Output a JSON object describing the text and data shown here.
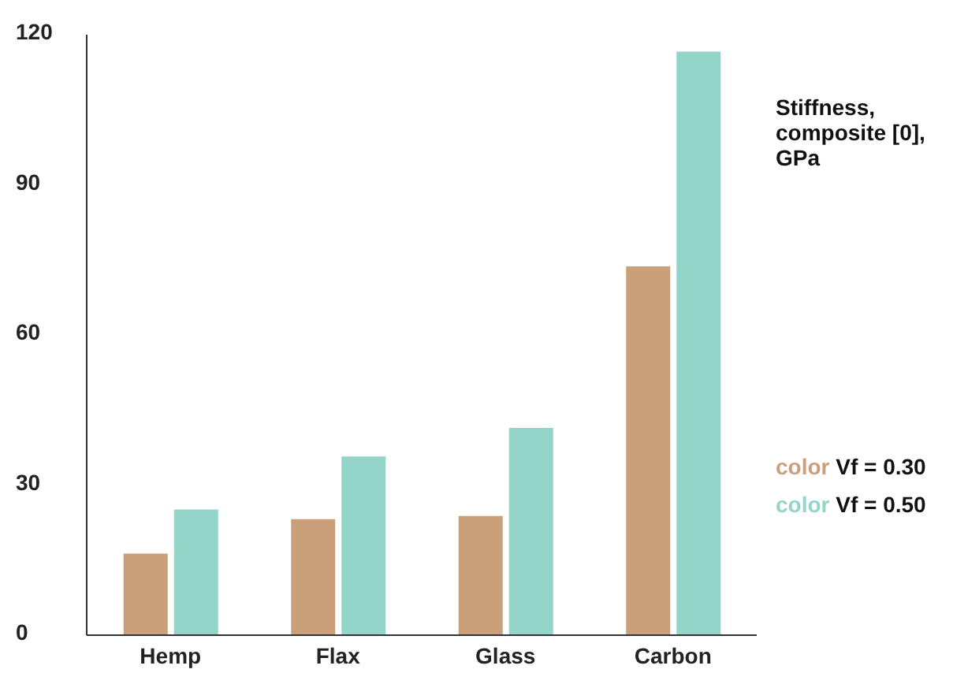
{
  "chart_data": {
    "type": "bar",
    "ylabel": "Stiffness, composite [0], GPa",
    "categories": [
      "Hemp",
      "Flax",
      "Glass",
      "Carbon"
    ],
    "series": [
      {
        "name": "color Vf = 0.30",
        "color": "#c9a07a",
        "values": [
          16.3,
          23.2,
          23.8,
          73.7
        ]
      },
      {
        "name": "color Vf = 0.50",
        "color": "#93d5c8",
        "values": [
          25.1,
          35.7,
          41.4,
          116.6
        ]
      }
    ],
    "ylim": [
      0,
      120
    ],
    "yticks": [
      0,
      30,
      60,
      90,
      120
    ],
    "legend": "right"
  }
}
